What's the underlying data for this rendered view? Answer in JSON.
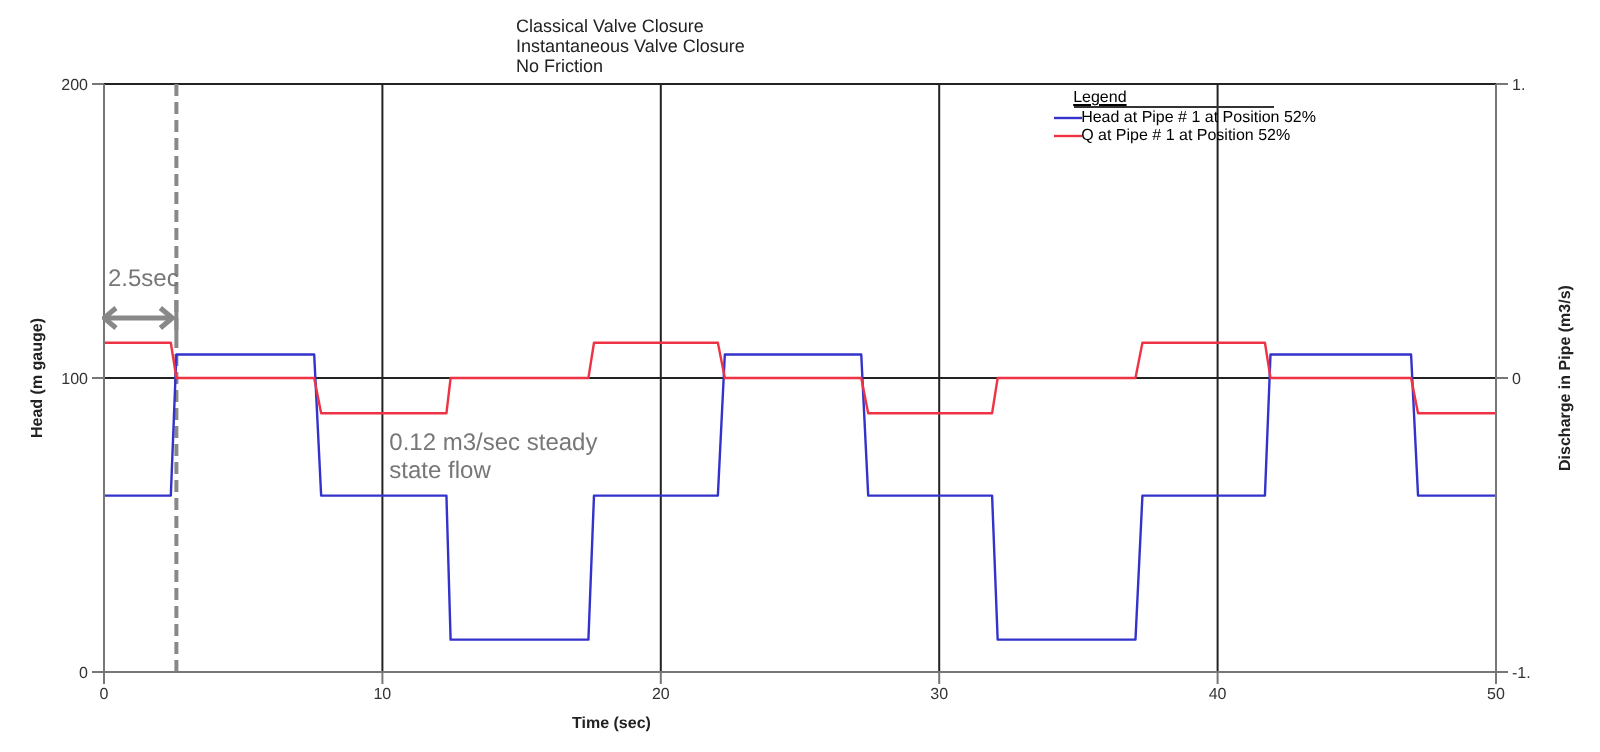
{
  "chart_data": {
    "type": "line",
    "title": "Classical Valve Closure",
    "subtitle": "Instantaneous Valve Closure",
    "xlabel": "Time (sec)",
    "ylabel": "Head (m gauge)",
    "y2label": "Discharge in Pipe (m3/s)",
    "legend_title": "Legend",
    "legend": "top right",
    "grid": true,
    "marker": "none",
    "line_style": "solid",
    "xlim": [
      0,
      50
    ],
    "xticks": [
      0,
      10,
      20,
      30,
      40,
      50
    ],
    "ylim": [
      0,
      200
    ],
    "yticks": [
      0,
      100,
      200
    ],
    "y2lim": [
      -1,
      1
    ],
    "y2ticks": [
      {
        "value": -1,
        "label": "-1."
      },
      0,
      {
        "value": 1,
        "label": "1."
      }
    ],
    "annotations": [
      "No Friction",
      "2.5sec",
      "0.12 m3/sec steady state flow"
    ],
    "ref_lines": [
      {
        "axis": "x",
        "value": 2.6,
        "color": "#888888",
        "line_style": "dashed"
      }
    ],
    "series": [
      {
        "name": "Head at Pipe # 1 at Position 52%",
        "color": "#3333cc",
        "x": [
          0,
          2.4,
          2.6,
          7.55,
          7.8,
          12.3,
          12.45,
          17.4,
          17.6,
          22.05,
          22.3,
          27.2,
          27.45,
          31.9,
          32.1,
          37.05,
          37.3,
          41.7,
          41.9,
          46.95,
          47.2,
          50
        ],
        "values": [
          60,
          60,
          108,
          108,
          60,
          60,
          11,
          11,
          60,
          60,
          108,
          108,
          60,
          60,
          11,
          11,
          60,
          60,
          108,
          108,
          60,
          60
        ]
      },
      {
        "name": "Q at Pipe # 1 at Position 52%",
        "color": "#ee3344",
        "axis": "y2",
        "x": [
          0,
          2.4,
          2.6,
          7.55,
          7.8,
          12.3,
          12.45,
          17.4,
          17.6,
          22.05,
          22.3,
          27.2,
          27.45,
          31.9,
          32.1,
          37.05,
          37.3,
          41.7,
          41.9,
          46.95,
          47.2,
          50
        ],
        "values": [
          0.12,
          0.12,
          0,
          0,
          -0.12,
          -0.12,
          0,
          0,
          0.12,
          0.12,
          0,
          0,
          -0.12,
          -0.12,
          0,
          0,
          0.12,
          0.12,
          0,
          0,
          -0.12,
          -0.12
        ]
      }
    ]
  }
}
